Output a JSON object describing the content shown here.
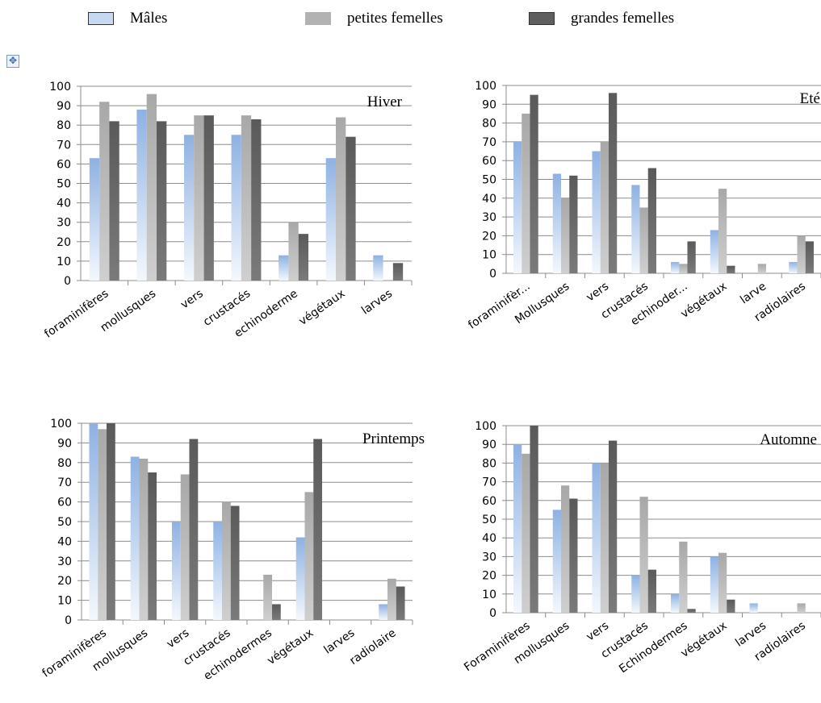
{
  "legend": [
    {
      "label": "Mâles",
      "color": "#c6d9f1"
    },
    {
      "label": "petites femelles",
      "color": "#b2b2b2"
    },
    {
      "label": "grandes femelles",
      "color": "#5f5f5f"
    }
  ],
  "chart_data": [
    {
      "type": "bar",
      "title": "Hiver",
      "ylim": [
        0,
        100
      ],
      "yticks": [
        0,
        10,
        20,
        30,
        40,
        50,
        60,
        70,
        80,
        90,
        100
      ],
      "categories": [
        "foraminifères",
        "mollusques",
        "vers",
        "crustacés",
        "echinoderme",
        "végétaux",
        "larves"
      ],
      "series": [
        {
          "name": "Mâles",
          "values": [
            63,
            88,
            75,
            75,
            13,
            63,
            13
          ]
        },
        {
          "name": "petites femelles",
          "values": [
            92,
            96,
            85,
            85,
            30,
            84,
            0
          ]
        },
        {
          "name": "grandes femelles",
          "values": [
            82,
            82,
            85,
            83,
            24,
            74,
            9
          ]
        }
      ],
      "grid": true
    },
    {
      "type": "bar",
      "title": "Eté",
      "ylim": [
        0,
        100
      ],
      "yticks": [
        0,
        10,
        20,
        30,
        40,
        50,
        60,
        70,
        80,
        90,
        100
      ],
      "categories": [
        "foraminifèr...",
        "Mollusques",
        "vers",
        "crustacés",
        "echinoder...",
        "végétaux",
        "larve",
        "radiolaires"
      ],
      "series": [
        {
          "name": "Mâles",
          "values": [
            70,
            53,
            65,
            47,
            6,
            23,
            0,
            6
          ]
        },
        {
          "name": "petites femelles",
          "values": [
            85,
            40,
            70,
            35,
            5,
            45,
            5,
            20
          ]
        },
        {
          "name": "grandes femelles",
          "values": [
            95,
            52,
            96,
            56,
            17,
            4,
            0,
            17
          ]
        }
      ],
      "grid": true
    },
    {
      "type": "bar",
      "title": "Printemps",
      "ylim": [
        0,
        100
      ],
      "yticks": [
        0,
        10,
        20,
        30,
        40,
        50,
        60,
        70,
        80,
        90,
        100
      ],
      "categories": [
        "foraminifères",
        "mollusques",
        "vers",
        "crustacés",
        "echinodermes",
        "végétaux",
        "larves",
        "radiolaire"
      ],
      "series": [
        {
          "name": "Mâles",
          "values": [
            100,
            83,
            50,
            50,
            0,
            42,
            0,
            8
          ]
        },
        {
          "name": "petites femelles",
          "values": [
            97,
            82,
            74,
            60,
            23,
            65,
            0,
            21
          ]
        },
        {
          "name": "grandes femelles",
          "values": [
            100,
            75,
            92,
            58,
            8,
            92,
            0,
            17
          ]
        }
      ],
      "grid": true
    },
    {
      "type": "bar",
      "title": "Automne",
      "ylim": [
        0,
        100
      ],
      "yticks": [
        0,
        10,
        20,
        30,
        40,
        50,
        60,
        70,
        80,
        90,
        100
      ],
      "categories": [
        "Foraminifères",
        "mollusques",
        "vers",
        "crustacés",
        "Echinodermes",
        "végétaux",
        "larves",
        "radiolaires"
      ],
      "series": [
        {
          "name": "Mâles",
          "values": [
            90,
            55,
            80,
            20,
            10,
            30,
            5,
            0
          ]
        },
        {
          "name": "petites femelles",
          "values": [
            85,
            68,
            80,
            62,
            38,
            32,
            0,
            5
          ]
        },
        {
          "name": "grandes femelles",
          "values": [
            100,
            61,
            92,
            23,
            2,
            7,
            0,
            0
          ]
        }
      ],
      "grid": true
    }
  ]
}
